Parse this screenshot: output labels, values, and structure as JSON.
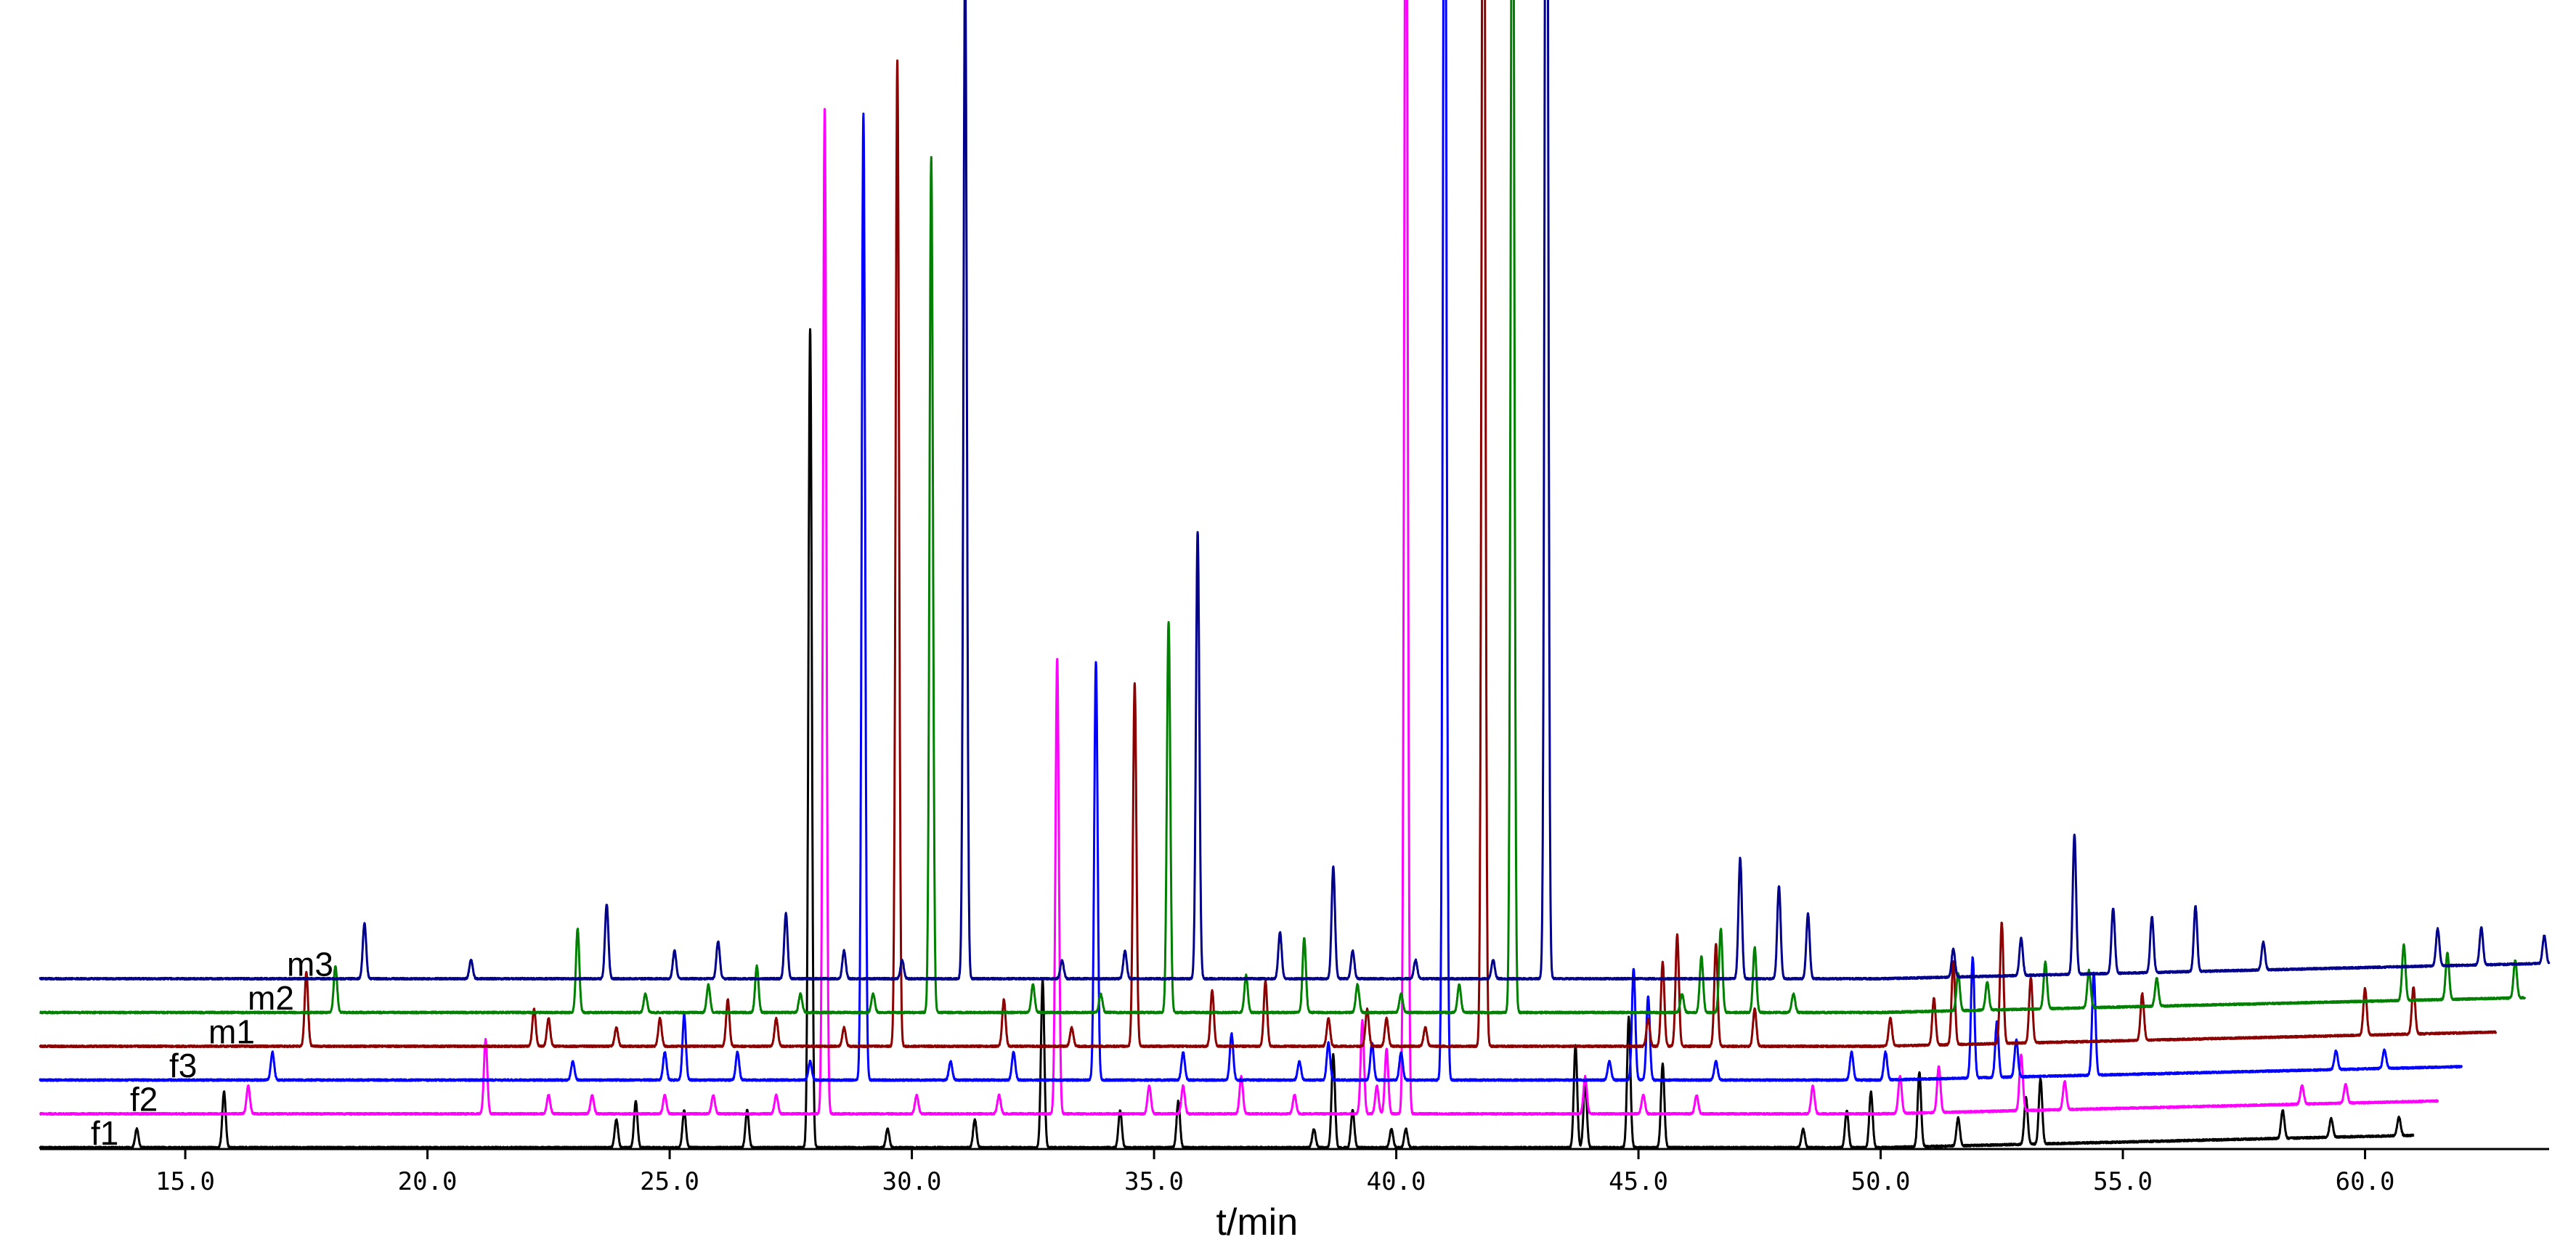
{
  "chart_data": {
    "type": "line",
    "title": "",
    "xlabel": "t/min",
    "ylabel": "",
    "xlim": [
      12.0,
      63.8
    ],
    "xticks": [
      15.0,
      20.0,
      25.0,
      30.0,
      35.0,
      40.0,
      45.0,
      50.0,
      55.0,
      60.0
    ],
    "xtick_labels": [
      "15.0",
      "20.0",
      "25.0",
      "30.0",
      "35.0",
      "40.0",
      "45.0",
      "50.0",
      "55.0",
      "60.0"
    ],
    "grid": false,
    "legend": "labels at left end of each trace",
    "series": [
      {
        "name": "f1",
        "color": "#000000",
        "time_offset": 0.0,
        "x_end": 61.0,
        "peaks": [
          [
            14.0,
            2
          ],
          [
            15.8,
            6
          ],
          [
            23.9,
            3
          ],
          [
            24.3,
            5
          ],
          [
            25.3,
            4
          ],
          [
            26.6,
            4
          ],
          [
            27.9,
            88
          ],
          [
            29.5,
            2
          ],
          [
            31.3,
            3
          ],
          [
            32.7,
            18
          ],
          [
            34.3,
            4
          ],
          [
            35.5,
            5
          ],
          [
            38.3,
            2
          ],
          [
            38.7,
            10
          ],
          [
            39.1,
            4
          ],
          [
            39.9,
            2
          ],
          [
            40.2,
            2
          ],
          [
            43.7,
            11
          ],
          [
            43.9,
            7
          ],
          [
            44.8,
            14
          ],
          [
            45.5,
            9
          ],
          [
            48.4,
            2
          ],
          [
            49.3,
            4
          ],
          [
            49.8,
            6
          ],
          [
            50.8,
            8
          ],
          [
            51.6,
            3
          ],
          [
            53.0,
            5
          ],
          [
            53.3,
            7
          ],
          [
            58.3,
            3
          ],
          [
            59.3,
            2
          ],
          [
            60.7,
            2
          ]
        ]
      },
      {
        "name": "f2",
        "color": "#ff00ff",
        "time_offset": 0.55,
        "x_end": 61.5,
        "peaks": [
          [
            16.3,
            3
          ],
          [
            21.2,
            8
          ],
          [
            22.5,
            2
          ],
          [
            23.4,
            2
          ],
          [
            24.9,
            2
          ],
          [
            25.9,
            2
          ],
          [
            27.2,
            2
          ],
          [
            28.2,
            108
          ],
          [
            30.1,
            2
          ],
          [
            31.8,
            2
          ],
          [
            33.0,
            49
          ],
          [
            34.9,
            3
          ],
          [
            35.6,
            3
          ],
          [
            36.8,
            4
          ],
          [
            37.9,
            2
          ],
          [
            39.3,
            10
          ],
          [
            39.6,
            3
          ],
          [
            39.8,
            7
          ],
          [
            40.2,
            150
          ],
          [
            43.9,
            4
          ],
          [
            45.1,
            2
          ],
          [
            46.2,
            2
          ],
          [
            48.6,
            3
          ],
          [
            50.4,
            4
          ],
          [
            51.2,
            5
          ],
          [
            52.9,
            6
          ],
          [
            53.8,
            3
          ],
          [
            58.7,
            2
          ],
          [
            59.6,
            2
          ]
        ]
      },
      {
        "name": "f3",
        "color": "#0000ff",
        "time_offset": 1.15,
        "x_end": 62.0,
        "peaks": [
          [
            16.8,
            3
          ],
          [
            23.0,
            2
          ],
          [
            24.9,
            3
          ],
          [
            25.3,
            7
          ],
          [
            26.4,
            3
          ],
          [
            27.9,
            2
          ],
          [
            29.0,
            104
          ],
          [
            30.8,
            2
          ],
          [
            32.1,
            3
          ],
          [
            33.8,
            45
          ],
          [
            35.6,
            3
          ],
          [
            36.6,
            5
          ],
          [
            38.0,
            2
          ],
          [
            38.6,
            4
          ],
          [
            39.5,
            4
          ],
          [
            40.1,
            3
          ],
          [
            41.0,
            160
          ],
          [
            44.4,
            2
          ],
          [
            44.9,
            12
          ],
          [
            45.2,
            9
          ],
          [
            46.6,
            2
          ],
          [
            49.4,
            3
          ],
          [
            50.1,
            3
          ],
          [
            51.9,
            13
          ],
          [
            52.4,
            6
          ],
          [
            52.8,
            4
          ],
          [
            54.4,
            11
          ],
          [
            59.4,
            2
          ],
          [
            60.4,
            2
          ]
        ]
      },
      {
        "name": "m1",
        "color": "#8b0000",
        "time_offset": 1.75,
        "x_end": 62.7,
        "peaks": [
          [
            17.5,
            8
          ],
          [
            22.2,
            4
          ],
          [
            22.5,
            3
          ],
          [
            23.9,
            2
          ],
          [
            24.8,
            3
          ],
          [
            26.2,
            5
          ],
          [
            27.2,
            3
          ],
          [
            28.6,
            2
          ],
          [
            29.7,
            106
          ],
          [
            31.9,
            5
          ],
          [
            33.3,
            2
          ],
          [
            34.6,
            39
          ],
          [
            36.2,
            6
          ],
          [
            37.3,
            7
          ],
          [
            38.6,
            3
          ],
          [
            39.4,
            4
          ],
          [
            39.8,
            3
          ],
          [
            40.6,
            2
          ],
          [
            41.8,
            166
          ],
          [
            45.2,
            3
          ],
          [
            45.5,
            9
          ],
          [
            45.8,
            12
          ],
          [
            46.6,
            11
          ],
          [
            47.4,
            4
          ],
          [
            50.2,
            3
          ],
          [
            51.1,
            5
          ],
          [
            51.5,
            9
          ],
          [
            52.5,
            13
          ],
          [
            53.1,
            7
          ],
          [
            55.4,
            5
          ],
          [
            60.0,
            5
          ],
          [
            61.0,
            5
          ]
        ]
      },
      {
        "name": "m2",
        "color": "#008000",
        "time_offset": 2.35,
        "x_end": 63.3,
        "peaks": [
          [
            18.1,
            5
          ],
          [
            23.1,
            9
          ],
          [
            24.5,
            2
          ],
          [
            25.8,
            3
          ],
          [
            26.8,
            5
          ],
          [
            27.7,
            2
          ],
          [
            29.2,
            2
          ],
          [
            30.4,
            92
          ],
          [
            32.5,
            3
          ],
          [
            33.9,
            2
          ],
          [
            35.3,
            42
          ],
          [
            36.9,
            4
          ],
          [
            38.1,
            8
          ],
          [
            39.2,
            3
          ],
          [
            40.1,
            2
          ],
          [
            41.3,
            3
          ],
          [
            42.4,
            148
          ],
          [
            45.9,
            2
          ],
          [
            46.3,
            6
          ],
          [
            46.7,
            9
          ],
          [
            47.4,
            7
          ],
          [
            48.2,
            2
          ],
          [
            51.6,
            4
          ],
          [
            52.2,
            3
          ],
          [
            53.4,
            5
          ],
          [
            54.3,
            4
          ],
          [
            55.7,
            3
          ],
          [
            60.8,
            6
          ],
          [
            61.7,
            5
          ],
          [
            63.1,
            4
          ]
        ]
      },
      {
        "name": "m3",
        "color": "#00008b",
        "time_offset": 2.95,
        "x_end": 63.8,
        "peaks": [
          [
            18.7,
            6
          ],
          [
            20.9,
            2
          ],
          [
            23.7,
            8
          ],
          [
            25.1,
            3
          ],
          [
            26.0,
            4
          ],
          [
            27.4,
            7
          ],
          [
            28.6,
            3
          ],
          [
            29.8,
            2
          ],
          [
            31.1,
            110
          ],
          [
            33.1,
            2
          ],
          [
            34.4,
            3
          ],
          [
            35.9,
            48
          ],
          [
            37.6,
            5
          ],
          [
            38.7,
            12
          ],
          [
            39.1,
            3
          ],
          [
            40.4,
            2
          ],
          [
            42.0,
            2
          ],
          [
            43.1,
            162
          ],
          [
            47.1,
            13
          ],
          [
            47.9,
            10
          ],
          [
            48.5,
            7
          ],
          [
            51.5,
            3
          ],
          [
            52.9,
            4
          ],
          [
            54.0,
            15
          ],
          [
            54.8,
            7
          ],
          [
            55.6,
            6
          ],
          [
            56.5,
            7
          ],
          [
            57.9,
            3
          ],
          [
            61.5,
            4
          ],
          [
            62.4,
            4
          ],
          [
            63.7,
            3
          ]
        ]
      }
    ]
  }
}
